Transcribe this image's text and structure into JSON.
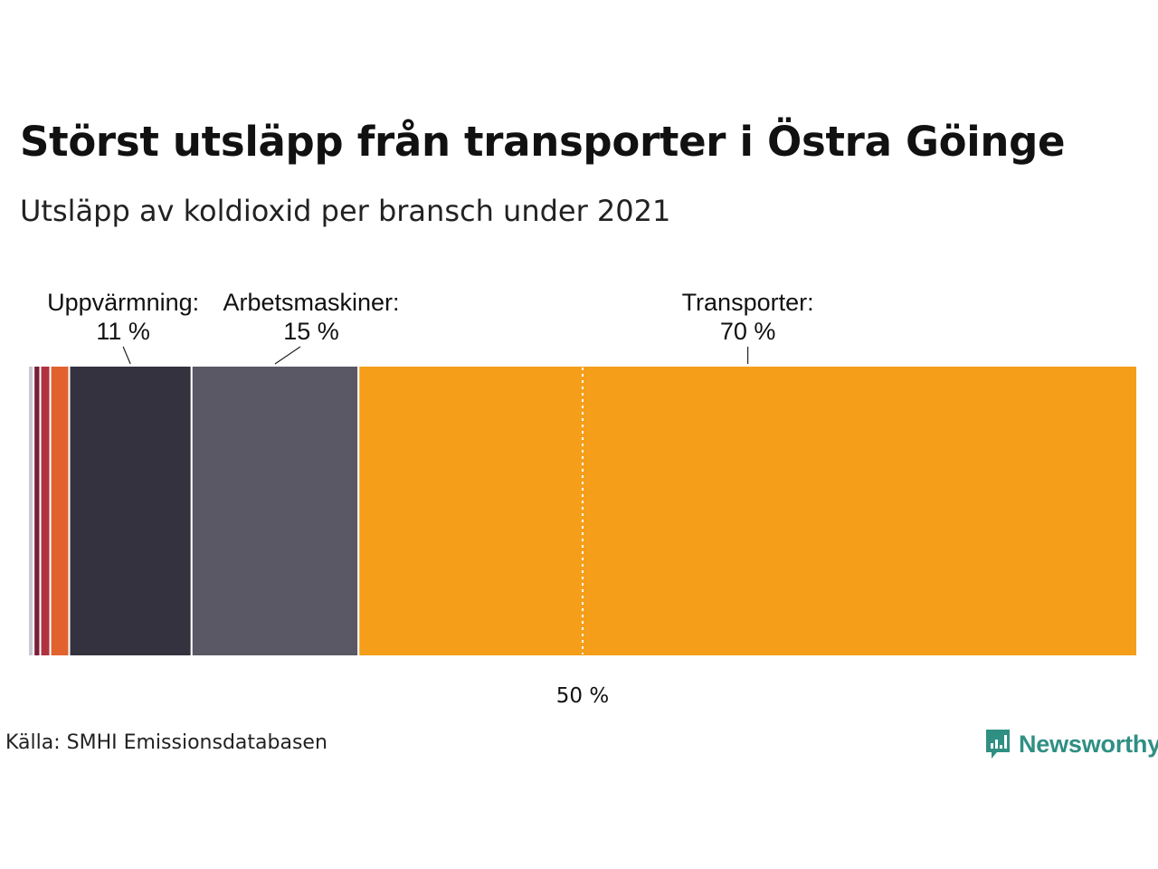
{
  "header": {
    "title": "Störst utsläpp från transporter i Östra Göinge",
    "subtitle": "Utsläpp av koldioxid per bransch under 2021"
  },
  "footer": {
    "source": "Källa: SMHI Emissionsdatabasen",
    "brand": "Newsworthy"
  },
  "colors": {
    "brand": "#2f8f83",
    "midline": "#ffffff"
  },
  "chart_data": {
    "type": "stacked-bar-100",
    "title": "Störst utsläpp från transporter i Östra Göinge",
    "subtitle": "Utsläpp av koldioxid per bransch under 2021",
    "unit": "%",
    "xlim": [
      0,
      100
    ],
    "reference_line": {
      "value": 50,
      "label": "50 %"
    },
    "segments": [
      {
        "name": "",
        "value": 0.5,
        "color": "#c9c9d1",
        "label": "",
        "value_label": ""
      },
      {
        "name": "",
        "value": 0.6,
        "color": "#7a1f3a",
        "label": "",
        "value_label": ""
      },
      {
        "name": "",
        "value": 0.9,
        "color": "#b0323f",
        "label": "",
        "value_label": ""
      },
      {
        "name": "",
        "value": 1.7,
        "color": "#e2622d",
        "label": "",
        "value_label": ""
      },
      {
        "name": "Uppvärmning",
        "value": 11,
        "color": "#34323f",
        "label": "Uppvärmning:",
        "value_label": "11 %"
      },
      {
        "name": "Arbetsmaskiner",
        "value": 15,
        "color": "#5a5865",
        "label": "Arbetsmaskiner:",
        "value_label": "15 %"
      },
      {
        "name": "Transporter",
        "value": 70,
        "color": "#f59e1a",
        "label": "Transporter:",
        "value_label": "70 %"
      }
    ]
  }
}
